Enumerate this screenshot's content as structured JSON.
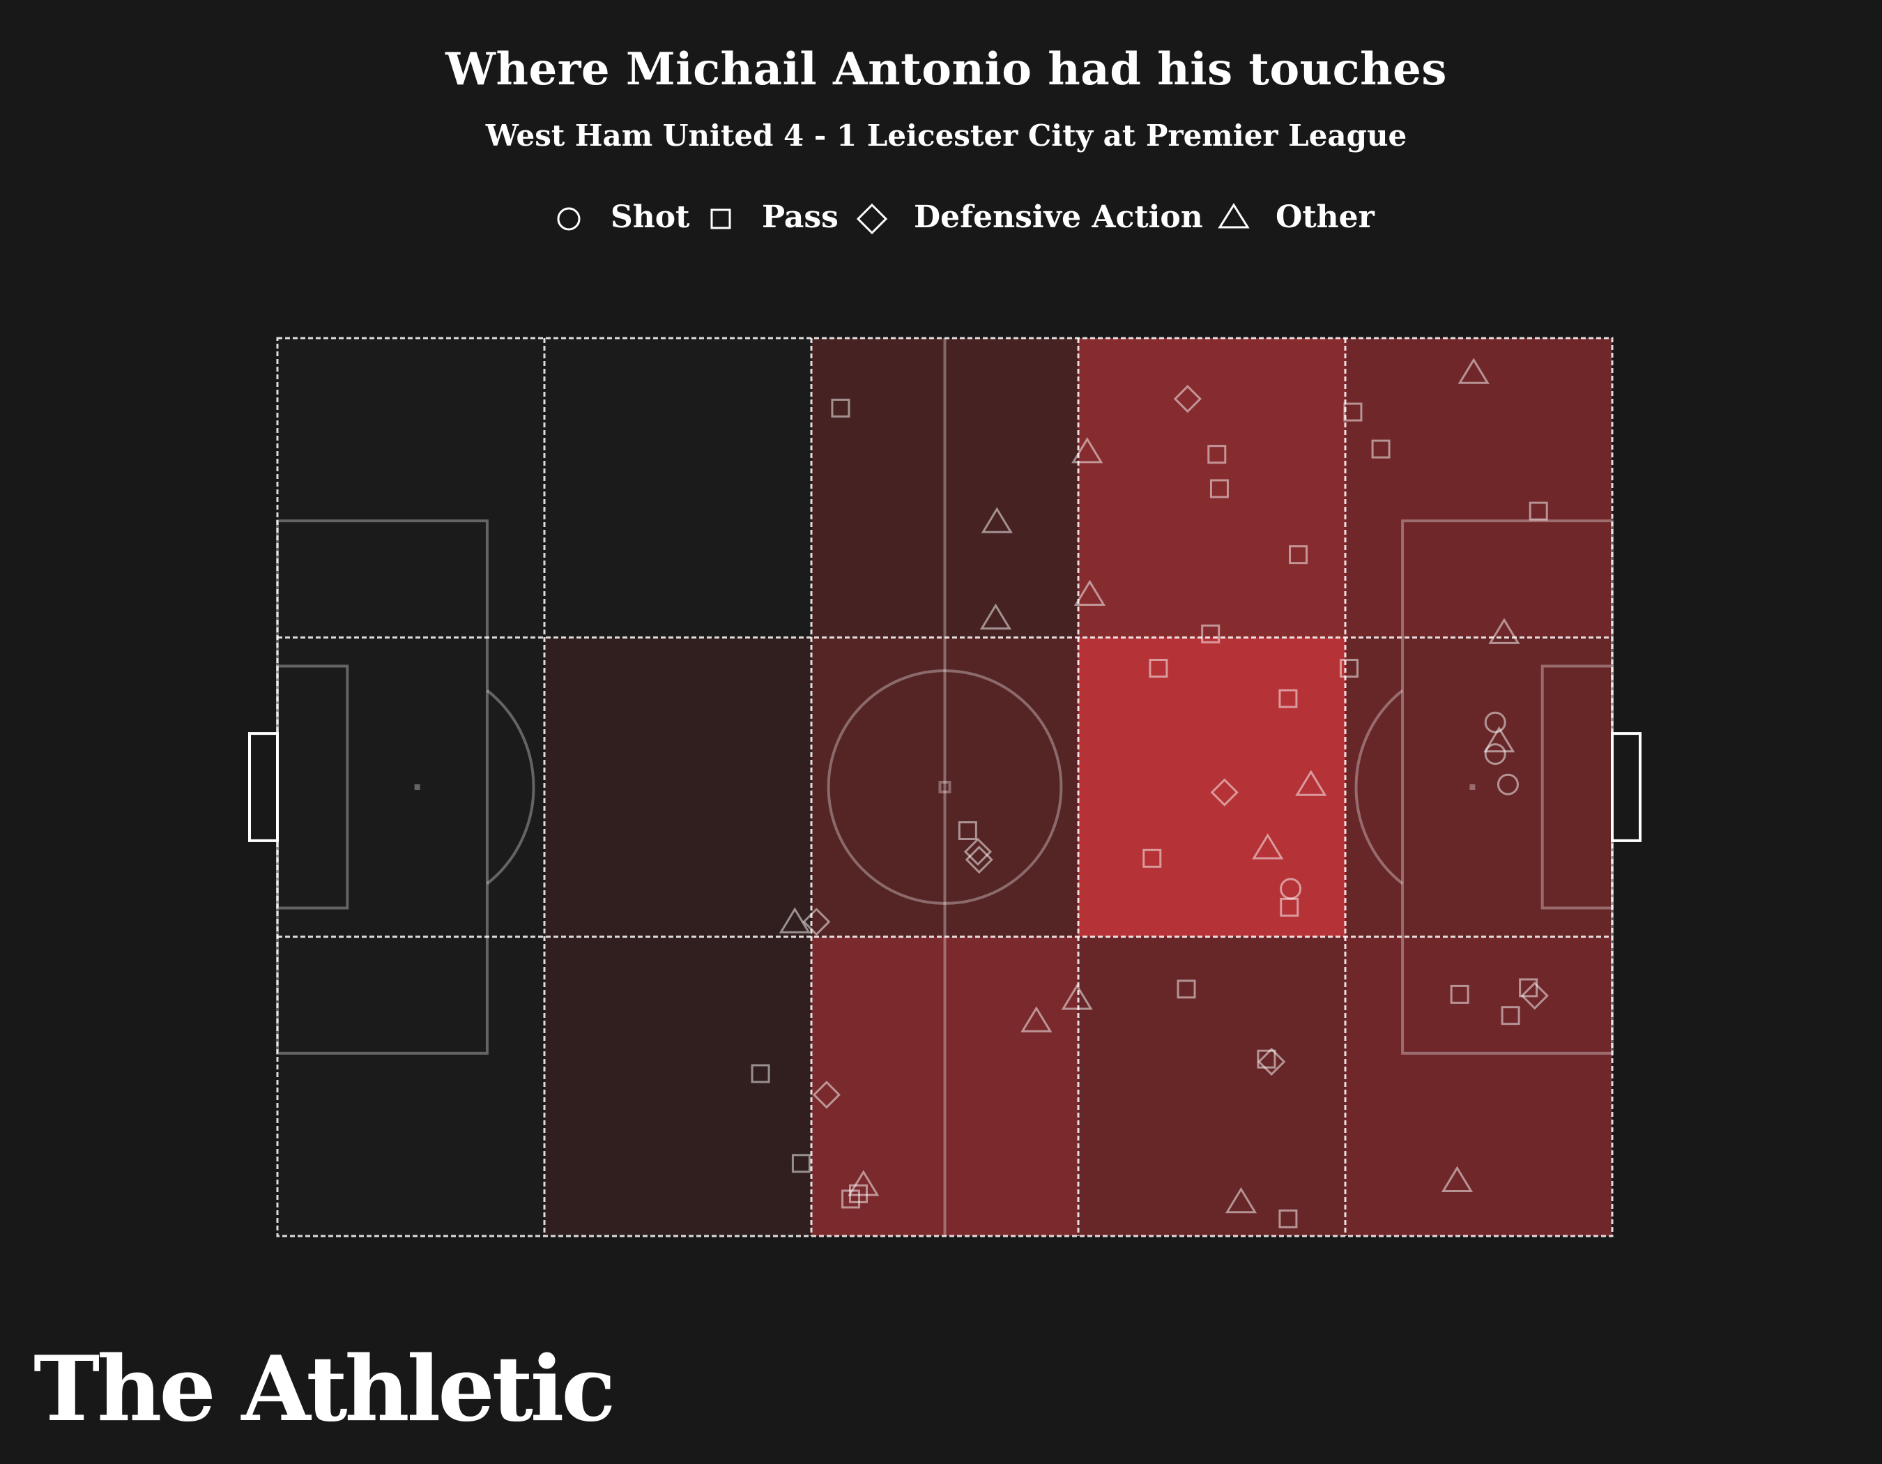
{
  "title": "Where Michail Antonio had his touches",
  "subtitle": "West Ham United 4 - 1 Leicester City at Premier League",
  "legend": {
    "shot": "Shot",
    "pass": "Pass",
    "defensive": "Defensive Action",
    "other": "Other"
  },
  "brand": "The Athletic",
  "colors": {
    "background": "#181818",
    "heat": "#e0393e",
    "marker": "#ffffff",
    "zone_border": "#ffffff",
    "pitch_line": "#ffffff"
  },
  "chart_data": {
    "type": "scatter",
    "pitch_length": 105,
    "pitch_width": 68,
    "zones": {
      "columns": 5,
      "rows": 3,
      "intensity": [
        [
          0.0,
          0.0,
          0.28,
          0.7,
          0.55
        ],
        [
          0.0,
          0.15,
          0.38,
          1.0,
          0.5
        ],
        [
          0.0,
          0.15,
          0.62,
          0.5,
          0.55
        ]
      ]
    },
    "touches": [
      {
        "type": "pass",
        "x": 44.3,
        "y": 5.3
      },
      {
        "type": "other",
        "x": 63.7,
        "y": 8.6
      },
      {
        "type": "defensive",
        "x": 71.6,
        "y": 4.6
      },
      {
        "type": "pass",
        "x": 73.9,
        "y": 8.8
      },
      {
        "type": "pass",
        "x": 74.1,
        "y": 11.4
      },
      {
        "type": "other",
        "x": 56.6,
        "y": 13.9
      },
      {
        "type": "other",
        "x": 63.9,
        "y": 19.4
      },
      {
        "type": "other",
        "x": 56.5,
        "y": 21.2
      },
      {
        "type": "pass",
        "x": 80.3,
        "y": 16.4
      },
      {
        "type": "pass",
        "x": 73.4,
        "y": 22.4
      },
      {
        "type": "pass",
        "x": 84.6,
        "y": 5.6
      },
      {
        "type": "pass",
        "x": 86.8,
        "y": 8.4
      },
      {
        "type": "other",
        "x": 94.1,
        "y": 2.6
      },
      {
        "type": "pass",
        "x": 99.2,
        "y": 13.1
      },
      {
        "type": "other",
        "x": 96.5,
        "y": 22.3
      },
      {
        "type": "pass",
        "x": 69.3,
        "y": 25.0
      },
      {
        "type": "pass",
        "x": 79.5,
        "y": 27.3
      },
      {
        "type": "pass",
        "x": 84.3,
        "y": 25.0
      },
      {
        "type": "defensive",
        "x": 74.5,
        "y": 34.4
      },
      {
        "type": "other",
        "x": 81.3,
        "y": 33.8
      },
      {
        "type": "other",
        "x": 77.9,
        "y": 38.6
      },
      {
        "type": "pass",
        "x": 68.8,
        "y": 39.4
      },
      {
        "type": "shot",
        "x": 79.7,
        "y": 41.7
      },
      {
        "type": "pass",
        "x": 79.6,
        "y": 43.1
      },
      {
        "type": "pass",
        "x": 54.3,
        "y": 37.3
      },
      {
        "type": "defensive",
        "x": 55.1,
        "y": 38.9
      },
      {
        "type": "defensive",
        "x": 55.2,
        "y": 39.5
      },
      {
        "type": "shot",
        "x": 95.8,
        "y": 29.1
      },
      {
        "type": "other",
        "x": 96.1,
        "y": 30.5
      },
      {
        "type": "shot",
        "x": 95.8,
        "y": 31.5
      },
      {
        "type": "shot",
        "x": 96.8,
        "y": 33.8
      },
      {
        "type": "other",
        "x": 40.7,
        "y": 44.2
      },
      {
        "type": "defensive",
        "x": 42.4,
        "y": 44.2
      },
      {
        "type": "pass",
        "x": 71.5,
        "y": 49.3
      },
      {
        "type": "other",
        "x": 62.9,
        "y": 50.0
      },
      {
        "type": "other",
        "x": 59.7,
        "y": 51.7
      },
      {
        "type": "pass",
        "x": 77.8,
        "y": 54.6
      },
      {
        "type": "defensive",
        "x": 78.2,
        "y": 54.8
      },
      {
        "type": "pass",
        "x": 93.0,
        "y": 49.7
      },
      {
        "type": "pass",
        "x": 98.4,
        "y": 49.2
      },
      {
        "type": "defensive",
        "x": 98.9,
        "y": 49.8
      },
      {
        "type": "pass",
        "x": 97.0,
        "y": 51.3
      },
      {
        "type": "pass",
        "x": 38.0,
        "y": 55.7
      },
      {
        "type": "defensive",
        "x": 43.2,
        "y": 57.3
      },
      {
        "type": "pass",
        "x": 41.2,
        "y": 62.5
      },
      {
        "type": "other",
        "x": 46.1,
        "y": 64.1
      },
      {
        "type": "pass",
        "x": 45.7,
        "y": 64.8
      },
      {
        "type": "pass",
        "x": 45.1,
        "y": 65.2
      },
      {
        "type": "other",
        "x": 92.8,
        "y": 63.8
      },
      {
        "type": "other",
        "x": 75.8,
        "y": 65.4
      },
      {
        "type": "pass",
        "x": 79.5,
        "y": 66.7
      }
    ]
  }
}
